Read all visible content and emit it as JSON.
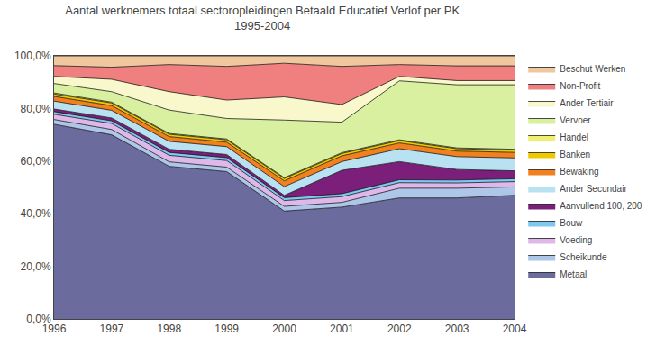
{
  "chart_data": {
    "type": "area",
    "stacked": true,
    "title": "Aantal werknemers totaal sectoropleidingen Betaald Educatief Verlof per PK\n1995-2004",
    "x": [
      1996,
      1997,
      1998,
      1999,
      2000,
      2001,
      2002,
      2003,
      2004
    ],
    "xlim": [
      1996,
      2004
    ],
    "xticks": [
      1996,
      1997,
      1998,
      1999,
      2000,
      2001,
      2002,
      2003,
      2004
    ],
    "ylim": [
      0.0,
      1.0
    ],
    "yticks": [
      {
        "value": 0.0,
        "label": "0,0%"
      },
      {
        "value": 0.2,
        "label": "20,0%"
      },
      {
        "value": 0.4,
        "label": "40,0%"
      },
      {
        "value": 0.6,
        "label": "60,0%"
      },
      {
        "value": 0.8,
        "label": "80,0%"
      },
      {
        "value": 1.0,
        "label": "100,0%"
      }
    ],
    "grid": false,
    "legend": "right",
    "series": [
      {
        "name": "Metaal",
        "color": "#6b6b9e",
        "values": [
          0.74,
          0.7,
          0.58,
          0.56,
          0.41,
          0.425,
          0.46,
          0.46,
          0.47
        ]
      },
      {
        "name": "Scheikunde",
        "color": "#aec6e8",
        "values": [
          0.018,
          0.02,
          0.017,
          0.017,
          0.018,
          0.018,
          0.037,
          0.037,
          0.032
        ]
      },
      {
        "name": "Voeding",
        "color": "#ddb8e8",
        "values": [
          0.02,
          0.023,
          0.025,
          0.025,
          0.022,
          0.022,
          0.021,
          0.02,
          0.02
        ]
      },
      {
        "name": "Bouw",
        "color": "#7ec8f0",
        "values": [
          0.01,
          0.01,
          0.011,
          0.011,
          0.011,
          0.011,
          0.011,
          0.011,
          0.011
        ]
      },
      {
        "name": "Aanvullend 100, 200",
        "color": "#7b1f7b",
        "values": [
          0.01,
          0.011,
          0.012,
          0.012,
          0.009,
          0.089,
          0.069,
          0.04,
          0.03
        ]
      },
      {
        "name": "Ander Secundair",
        "color": "#b8e2f2",
        "values": [
          0.03,
          0.029,
          0.03,
          0.03,
          0.033,
          0.033,
          0.049,
          0.049,
          0.049
        ]
      },
      {
        "name": "Bewaking",
        "color": "#f08020",
        "values": [
          0.018,
          0.018,
          0.018,
          0.017,
          0.022,
          0.022,
          0.022,
          0.021,
          0.021
        ]
      },
      {
        "name": "Banken",
        "color": "#f0c800",
        "values": [
          0.009,
          0.01,
          0.009,
          0.009,
          0.009,
          0.009,
          0.009,
          0.009,
          0.009
        ]
      },
      {
        "name": "Handel",
        "color": "#f0f070",
        "values": [
          0.004,
          0.003,
          0.003,
          0.003,
          0.003,
          0.003,
          0.003,
          0.003,
          0.003
        ]
      },
      {
        "name": "Vervoer",
        "color": "#d8f0a0",
        "values": [
          0.036,
          0.04,
          0.089,
          0.078,
          0.219,
          0.116,
          0.224,
          0.24,
          0.245
        ]
      },
      {
        "name": "Ander Tertiair",
        "color": "#f8f8cc",
        "values": [
          0.027,
          0.047,
          0.07,
          0.07,
          0.088,
          0.067,
          0.017,
          0.016,
          0.016
        ]
      },
      {
        "name": "Non-Profit",
        "color": "#f08080",
        "values": [
          0.041,
          0.046,
          0.103,
          0.128,
          0.128,
          0.145,
          0.045,
          0.056,
          0.056
        ]
      },
      {
        "name": "Beschut Werken",
        "color": "#f0c8a0",
        "values": [
          0.037,
          0.043,
          0.033,
          0.04,
          0.028,
          0.04,
          0.033,
          0.038,
          0.038
        ]
      }
    ]
  }
}
